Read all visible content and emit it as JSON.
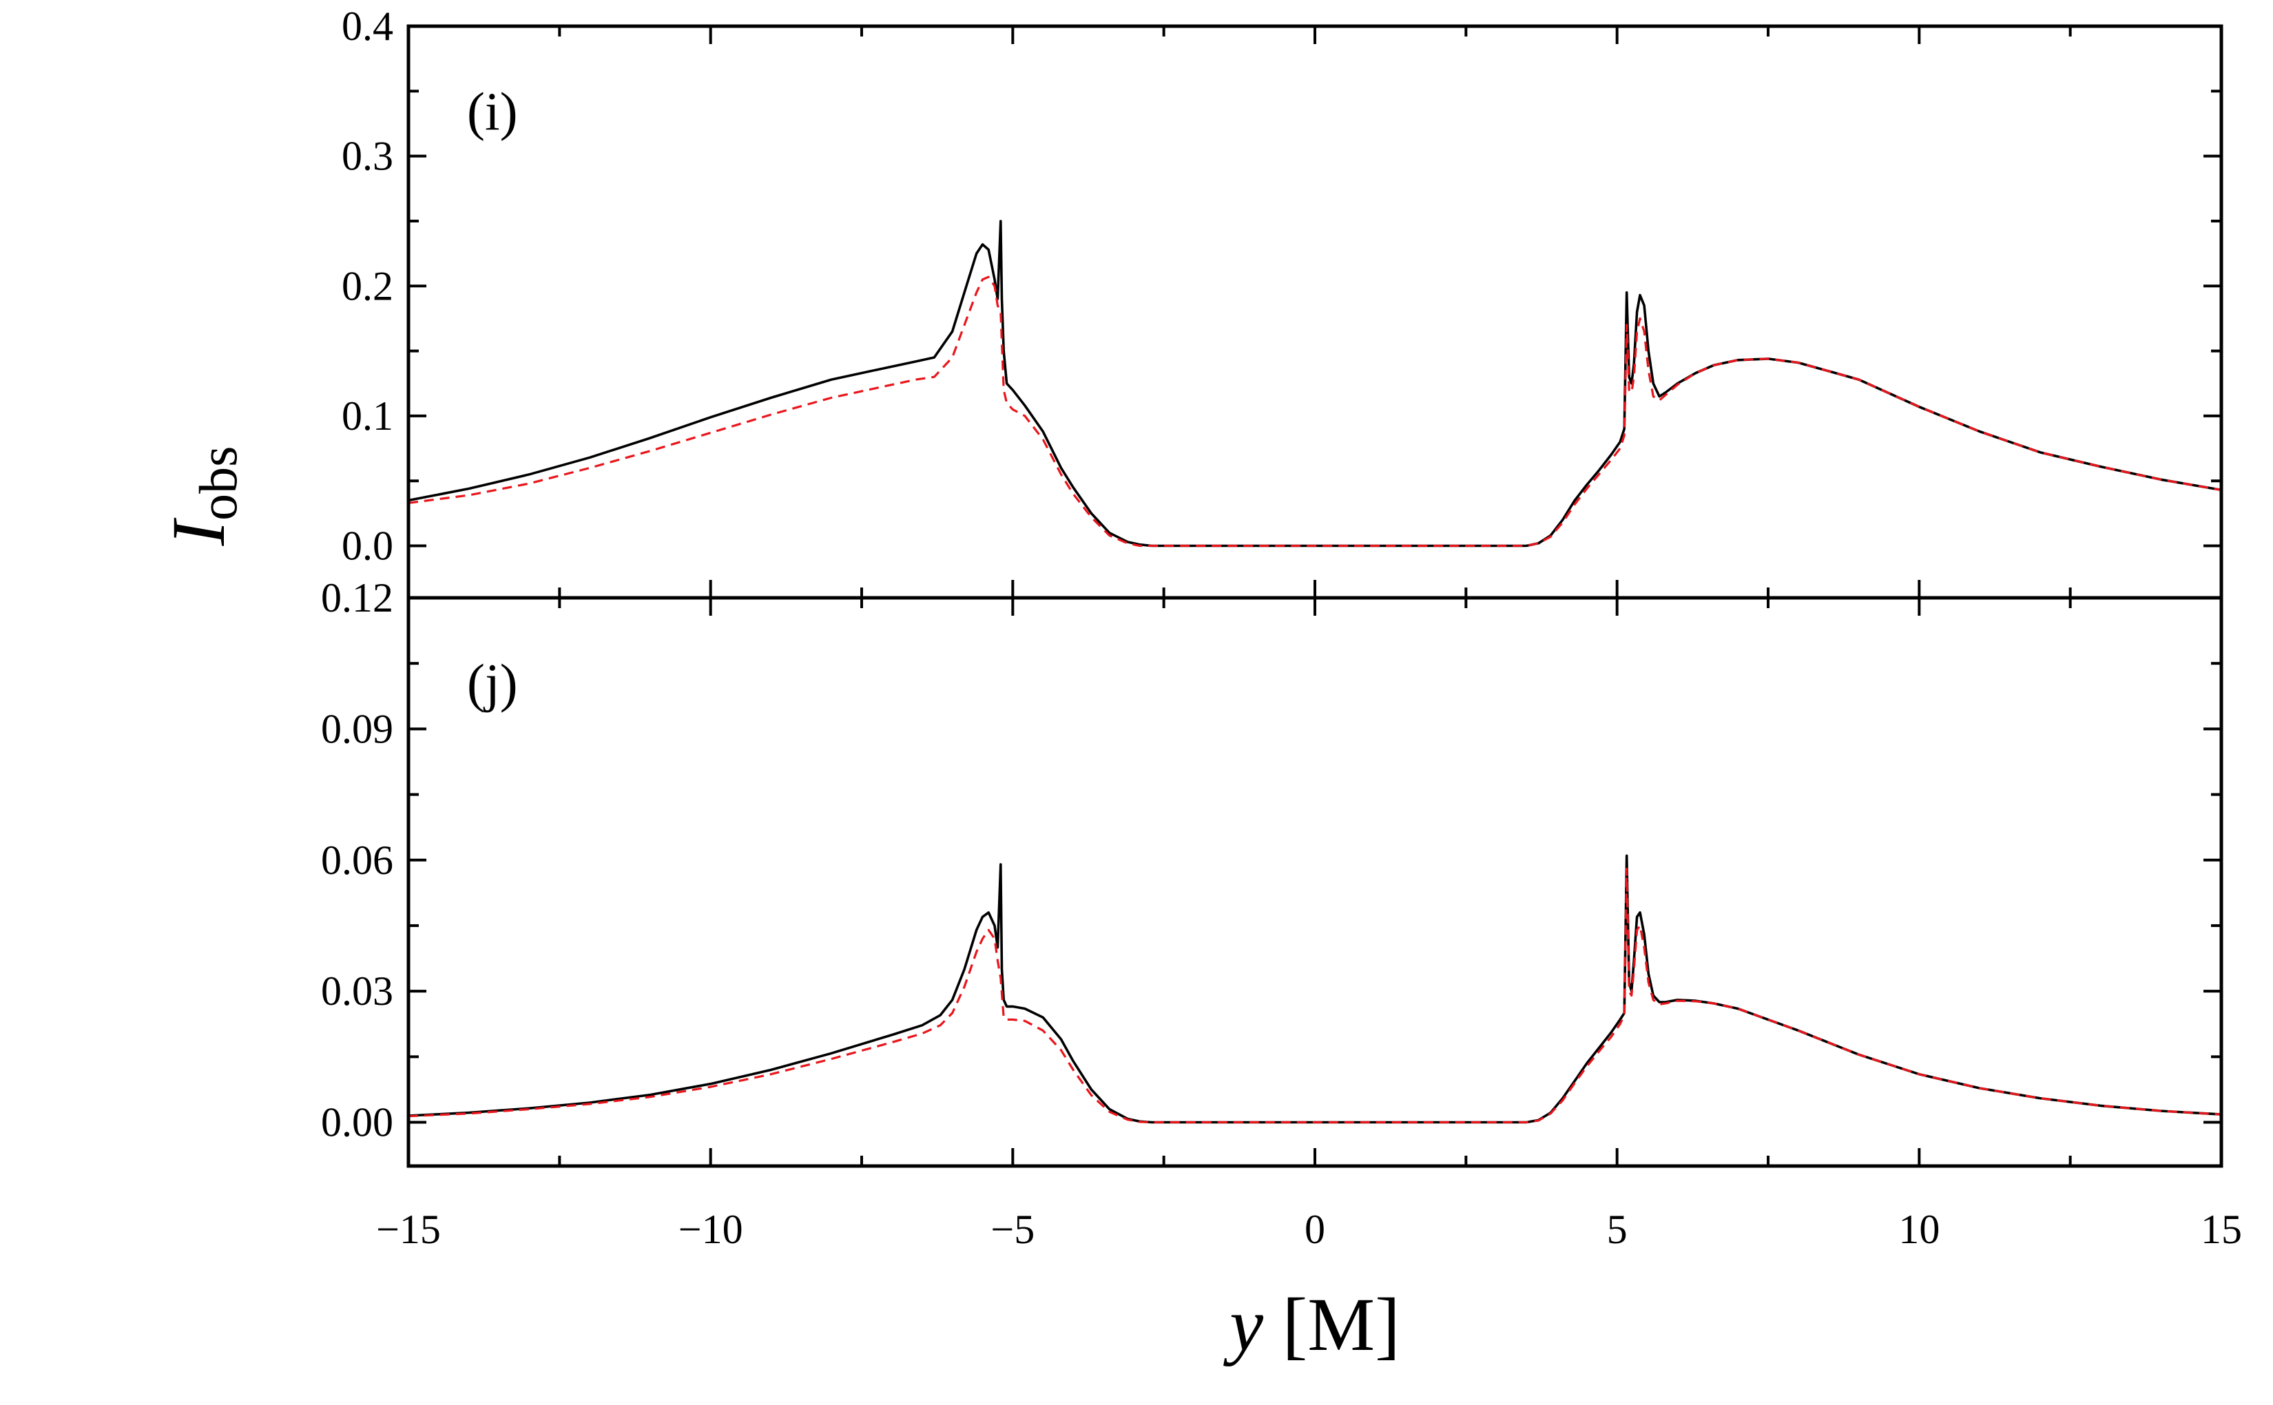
{
  "chart_data": [
    {
      "type": "line",
      "panel_label": "(i)",
      "xlim": [
        -15,
        15
      ],
      "ylim": [
        -0.04,
        0.4
      ],
      "yticks": [
        0.0,
        0.1,
        0.2,
        0.3,
        0.4
      ],
      "ytick_labels": [
        "0.0",
        "0.1",
        "0.2",
        "0.3",
        "0.4"
      ],
      "grid": false,
      "series": [
        {
          "style": "solid",
          "color": "#000000",
          "x": [
            -15,
            -14,
            -13,
            -12,
            -11,
            -10,
            -9,
            -8,
            -7,
            -6.6,
            -6.3,
            -6.0,
            -5.8,
            -5.6,
            -5.5,
            -5.4,
            -5.3,
            -5.25,
            -5.2,
            -5.18,
            -5.15,
            -5.1,
            -5.0,
            -4.8,
            -4.5,
            -4.2,
            -4.0,
            -3.7,
            -3.4,
            -3.1,
            -2.9,
            -2.7,
            -2.5,
            -2.0,
            0,
            2.0,
            3.0,
            3.5,
            3.7,
            3.9,
            4.1,
            4.3,
            4.5,
            4.7,
            4.9,
            5.05,
            5.12,
            5.16,
            5.2,
            5.24,
            5.28,
            5.33,
            5.38,
            5.45,
            5.52,
            5.6,
            5.7,
            5.8,
            6.0,
            6.3,
            6.6,
            7.0,
            7.5,
            8.0,
            9.0,
            10.0,
            11.0,
            12.0,
            13.0,
            14.0,
            15.0
          ],
          "y": [
            0.035,
            0.044,
            0.055,
            0.068,
            0.083,
            0.099,
            0.114,
            0.128,
            0.138,
            0.142,
            0.145,
            0.165,
            0.195,
            0.225,
            0.232,
            0.228,
            0.205,
            0.19,
            0.25,
            0.19,
            0.15,
            0.125,
            0.12,
            0.108,
            0.088,
            0.06,
            0.045,
            0.025,
            0.01,
            0.003,
            0.001,
            0.0,
            0.0,
            0.0,
            0.0,
            0.0,
            0.0,
            0.0,
            0.002,
            0.008,
            0.02,
            0.035,
            0.047,
            0.058,
            0.07,
            0.08,
            0.09,
            0.195,
            0.13,
            0.125,
            0.14,
            0.18,
            0.193,
            0.185,
            0.15,
            0.125,
            0.115,
            0.118,
            0.125,
            0.133,
            0.139,
            0.143,
            0.144,
            0.141,
            0.128,
            0.107,
            0.088,
            0.072,
            0.061,
            0.051,
            0.043
          ]
        },
        {
          "style": "dashed",
          "color": "#e8161c",
          "x": [
            -15,
            -14,
            -13,
            -12,
            -11,
            -10,
            -9,
            -8,
            -7,
            -6.6,
            -6.3,
            -6.0,
            -5.8,
            -5.6,
            -5.5,
            -5.4,
            -5.3,
            -5.25,
            -5.2,
            -5.15,
            -5.1,
            -5.0,
            -4.8,
            -4.5,
            -4.2,
            -4.0,
            -3.7,
            -3.4,
            -3.1,
            -2.9,
            -2.7,
            -2.5,
            -2.0,
            0,
            2.0,
            3.0,
            3.5,
            3.7,
            3.9,
            4.1,
            4.3,
            4.5,
            4.7,
            4.9,
            5.05,
            5.12,
            5.16,
            5.2,
            5.24,
            5.28,
            5.33,
            5.38,
            5.45,
            5.52,
            5.6,
            5.7,
            5.8,
            6.0,
            6.3,
            6.6,
            7.0,
            7.5,
            8.0,
            9.0,
            10.0,
            11.0,
            12.0,
            13.0,
            14.0,
            15.0
          ],
          "y": [
            0.033,
            0.039,
            0.048,
            0.06,
            0.073,
            0.087,
            0.101,
            0.114,
            0.124,
            0.128,
            0.13,
            0.145,
            0.17,
            0.195,
            0.205,
            0.207,
            0.2,
            0.185,
            0.18,
            0.12,
            0.11,
            0.105,
            0.1,
            0.082,
            0.055,
            0.04,
            0.022,
            0.008,
            0.002,
            0.0,
            0.0,
            0.0,
            0.0,
            0.0,
            0.0,
            0.0,
            0.0,
            0.002,
            0.007,
            0.018,
            0.032,
            0.044,
            0.055,
            0.066,
            0.075,
            0.085,
            0.17,
            0.12,
            0.118,
            0.13,
            0.165,
            0.175,
            0.165,
            0.135,
            0.115,
            0.112,
            0.116,
            0.124,
            0.133,
            0.139,
            0.143,
            0.144,
            0.141,
            0.128,
            0.107,
            0.088,
            0.072,
            0.061,
            0.051,
            0.043
          ]
        }
      ]
    },
    {
      "type": "line",
      "panel_label": "(j)",
      "xlim": [
        -15,
        15
      ],
      "ylim": [
        -0.01,
        0.12
      ],
      "yticks": [
        0.0,
        0.03,
        0.06,
        0.09,
        0.12
      ],
      "ytick_labels": [
        "0.00",
        "0.03",
        "0.06",
        "0.09",
        "0.12"
      ],
      "grid": false,
      "series": [
        {
          "style": "solid",
          "color": "#000000",
          "x": [
            -15,
            -14,
            -13,
            -12,
            -11,
            -10,
            -9,
            -8,
            -7,
            -6.5,
            -6.2,
            -6.0,
            -5.8,
            -5.6,
            -5.5,
            -5.4,
            -5.3,
            -5.25,
            -5.2,
            -5.18,
            -5.15,
            -5.1,
            -5.0,
            -4.8,
            -4.5,
            -4.2,
            -4.0,
            -3.7,
            -3.4,
            -3.1,
            -2.9,
            -2.7,
            -2.5,
            -2.0,
            0,
            2.0,
            3.0,
            3.5,
            3.7,
            3.9,
            4.1,
            4.3,
            4.5,
            4.7,
            4.9,
            5.05,
            5.12,
            5.16,
            5.2,
            5.24,
            5.28,
            5.33,
            5.38,
            5.45,
            5.52,
            5.6,
            5.7,
            5.8,
            6.0,
            6.3,
            6.6,
            7.0,
            7.5,
            8.0,
            9.0,
            10.0,
            11.0,
            12.0,
            13.0,
            14.0,
            15.0
          ],
          "y": [
            0.0015,
            0.0022,
            0.0032,
            0.0045,
            0.0063,
            0.0088,
            0.012,
            0.0158,
            0.02,
            0.0222,
            0.0245,
            0.028,
            0.035,
            0.044,
            0.047,
            0.048,
            0.045,
            0.04,
            0.059,
            0.035,
            0.028,
            0.0265,
            0.0265,
            0.026,
            0.024,
            0.019,
            0.014,
            0.0075,
            0.003,
            0.0008,
            0.0002,
            0.0,
            0.0,
            0.0,
            0.0,
            0.0,
            0.0,
            0.0,
            0.0005,
            0.0022,
            0.0055,
            0.0095,
            0.0135,
            0.017,
            0.0205,
            0.0235,
            0.025,
            0.061,
            0.032,
            0.03,
            0.037,
            0.047,
            0.048,
            0.043,
            0.034,
            0.029,
            0.0275,
            0.0275,
            0.028,
            0.0278,
            0.0272,
            0.026,
            0.0235,
            0.021,
            0.0155,
            0.011,
            0.0078,
            0.0055,
            0.0038,
            0.0026,
            0.0018
          ]
        },
        {
          "style": "dashed",
          "color": "#e8161c",
          "x": [
            -15,
            -14,
            -13,
            -12,
            -11,
            -10,
            -9,
            -8,
            -7,
            -6.5,
            -6.2,
            -6.0,
            -5.8,
            -5.6,
            -5.5,
            -5.4,
            -5.3,
            -5.25,
            -5.2,
            -5.15,
            -5.1,
            -5.0,
            -4.8,
            -4.5,
            -4.2,
            -4.0,
            -3.7,
            -3.4,
            -3.1,
            -2.9,
            -2.7,
            -2.5,
            -2.0,
            0,
            2.0,
            3.0,
            3.5,
            3.7,
            3.9,
            4.1,
            4.3,
            4.5,
            4.7,
            4.9,
            5.05,
            5.12,
            5.16,
            5.2,
            5.24,
            5.28,
            5.33,
            5.38,
            5.45,
            5.52,
            5.6,
            5.7,
            5.8,
            6.0,
            6.3,
            6.6,
            7.0,
            7.5,
            8.0,
            9.0,
            10.0,
            11.0,
            12.0,
            13.0,
            14.0,
            15.0
          ],
          "y": [
            0.0014,
            0.002,
            0.003,
            0.0042,
            0.0058,
            0.0081,
            0.011,
            0.0145,
            0.0183,
            0.0203,
            0.0222,
            0.025,
            0.031,
            0.039,
            0.042,
            0.044,
            0.042,
            0.037,
            0.033,
            0.024,
            0.0235,
            0.0235,
            0.0232,
            0.021,
            0.0165,
            0.012,
            0.0062,
            0.0024,
            0.0006,
            0.0001,
            0.0,
            0.0,
            0.0,
            0.0,
            0.0,
            0.0,
            0.0,
            0.0004,
            0.002,
            0.005,
            0.009,
            0.0128,
            0.0162,
            0.0195,
            0.0225,
            0.0245,
            0.058,
            0.03,
            0.029,
            0.035,
            0.044,
            0.045,
            0.04,
            0.032,
            0.028,
            0.027,
            0.0272,
            0.0278,
            0.0277,
            0.0272,
            0.026,
            0.0235,
            0.021,
            0.0155,
            0.011,
            0.0078,
            0.0055,
            0.0038,
            0.0026,
            0.0018
          ]
        }
      ]
    }
  ],
  "shared_x_axis": {
    "ticks": [
      -15,
      -10,
      -5,
      0,
      5,
      10,
      15
    ],
    "tick_labels": [
      "−15",
      "−10",
      "−5",
      "0",
      "5",
      "10",
      "15"
    ],
    "label_italic": "y",
    "label_rest": " [M]"
  },
  "shared_y_axis": {
    "label_main": "I",
    "label_sub": "obs"
  }
}
